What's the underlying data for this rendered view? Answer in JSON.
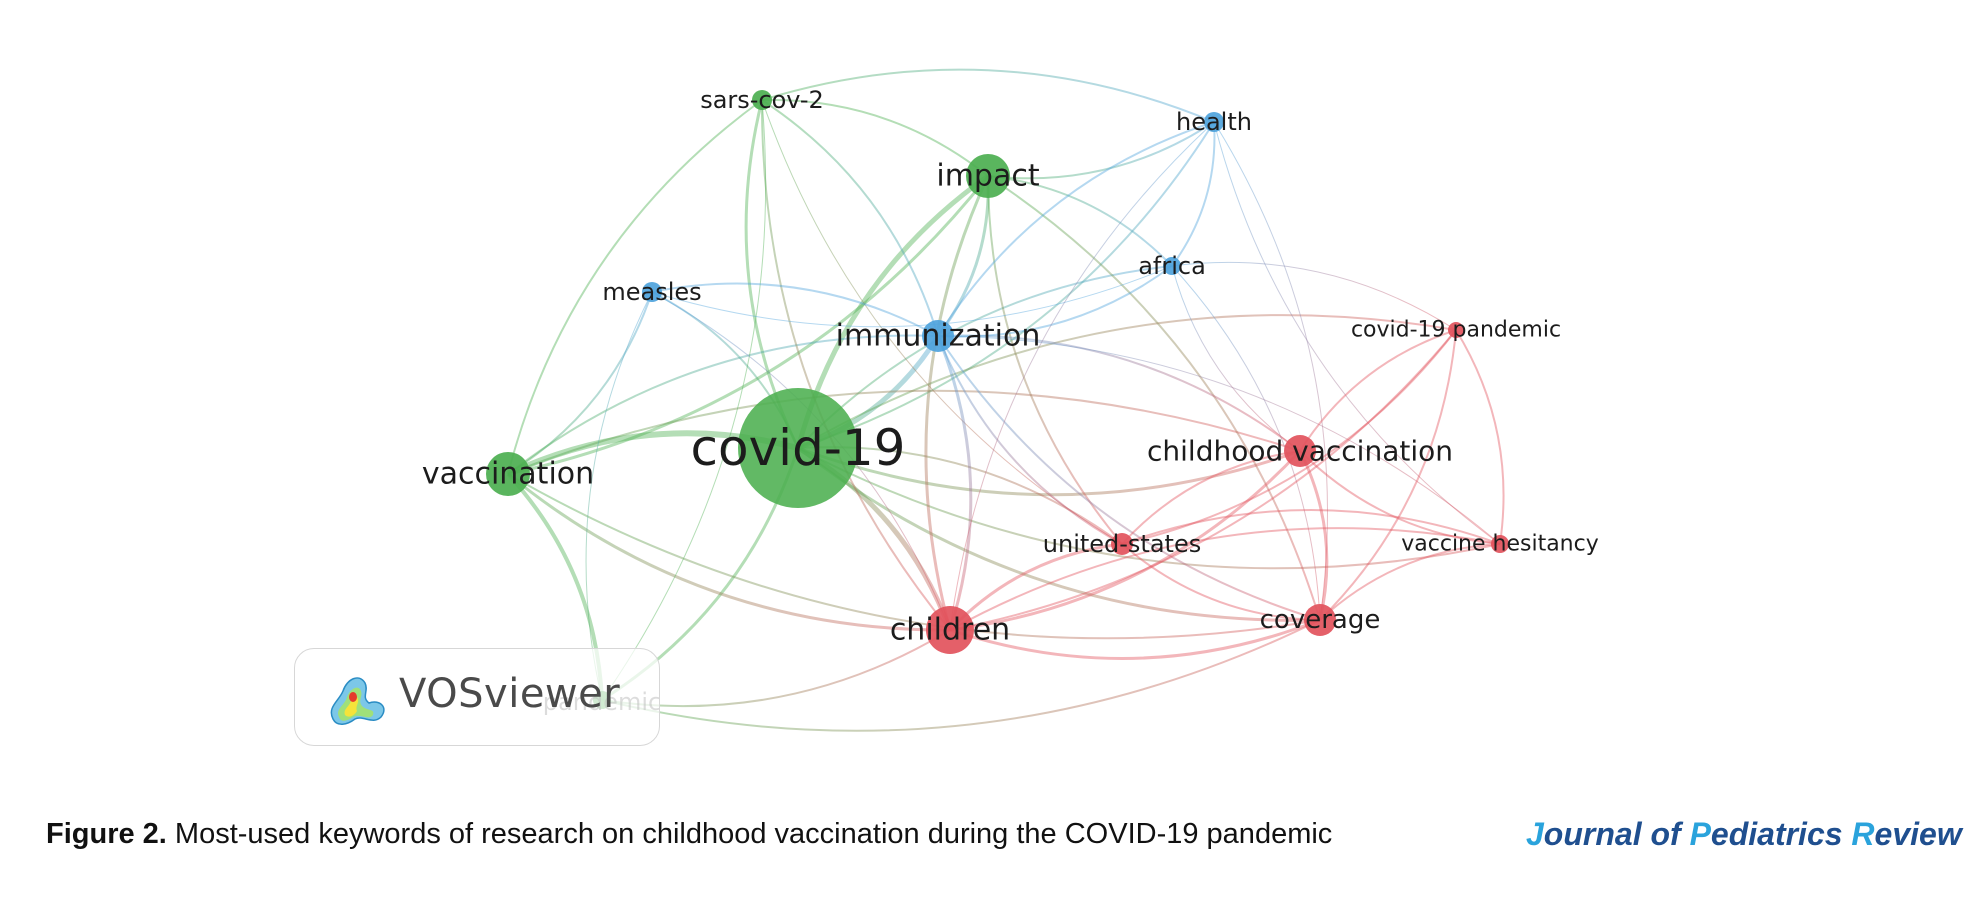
{
  "network": {
    "nodes": [
      {
        "id": "covid-19",
        "label": "covid-19",
        "cluster": "green"
      },
      {
        "id": "vaccination",
        "label": "vaccination",
        "cluster": "green"
      },
      {
        "id": "impact",
        "label": "impact",
        "cluster": "green"
      },
      {
        "id": "sars-cov-2",
        "label": "sars-cov-2",
        "cluster": "green"
      },
      {
        "id": "pandemic",
        "label": "pandemic",
        "cluster": "green"
      },
      {
        "id": "immunization",
        "label": "immunization",
        "cluster": "blue"
      },
      {
        "id": "measles",
        "label": "measles",
        "cluster": "blue"
      },
      {
        "id": "health",
        "label": "health",
        "cluster": "blue"
      },
      {
        "id": "africa",
        "label": "africa",
        "cluster": "blue"
      },
      {
        "id": "children",
        "label": "children",
        "cluster": "red"
      },
      {
        "id": "childhood vaccination",
        "label": "childhood vaccination",
        "cluster": "red"
      },
      {
        "id": "united-states",
        "label": "united-states",
        "cluster": "red"
      },
      {
        "id": "coverage",
        "label": "coverage",
        "cluster": "red"
      },
      {
        "id": "vaccine hesitancy",
        "label": "vaccine hesitancy",
        "cluster": "red"
      },
      {
        "id": "covid-19 pandemic",
        "label": "covid-19 pandemic",
        "cluster": "red"
      }
    ],
    "cluster_colors": {
      "green": "#4caf50",
      "blue": "#4ea3dc",
      "red": "#e2525c"
    }
  },
  "watermark": {
    "text": "VOSviewer"
  },
  "caption": {
    "label": "Figure 2.",
    "text": " Most-used keywords of research on childhood vaccination during the COVID-19 pandemic"
  },
  "journal": {
    "parts": [
      {
        "text": "J",
        "tone": "light"
      },
      {
        "text": "ournal of ",
        "tone": "dark"
      },
      {
        "text": "P",
        "tone": "light"
      },
      {
        "text": "ediatrics ",
        "tone": "dark"
      },
      {
        "text": "R",
        "tone": "light"
      },
      {
        "text": "eview",
        "tone": "dark"
      }
    ]
  }
}
